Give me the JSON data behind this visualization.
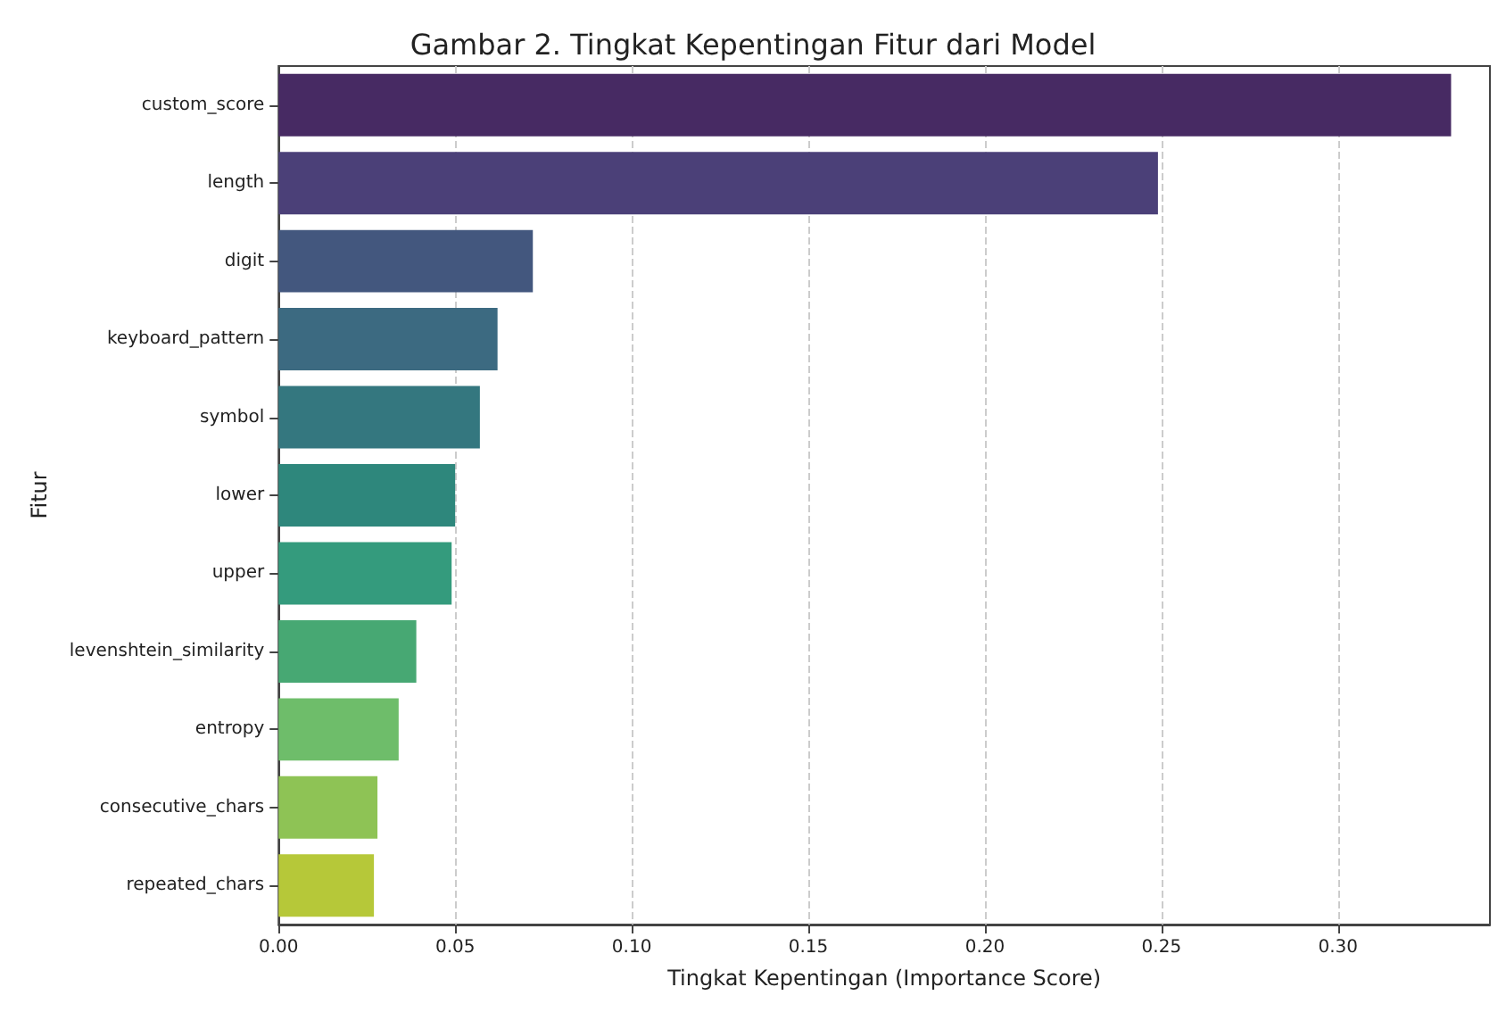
{
  "chart_data": {
    "type": "bar",
    "orientation": "horizontal",
    "title": "Gambar 2. Tingkat Kepentingan Fitur dari Model",
    "xlabel": "Tingkat Kepentingan (Importance Score)",
    "ylabel": "Fitur",
    "categories": [
      "custom_score",
      "length",
      "digit",
      "keyboard_pattern",
      "symbol",
      "lower",
      "upper",
      "levenshtein_similarity",
      "entropy",
      "consecutive_chars",
      "repeated_chars"
    ],
    "values": [
      0.332,
      0.249,
      0.072,
      0.062,
      0.057,
      0.05,
      0.049,
      0.039,
      0.034,
      0.028,
      0.027
    ],
    "colors": [
      "#472a63",
      "#4b4078",
      "#43577e",
      "#3c6a81",
      "#34777f",
      "#2e877c",
      "#349b7d",
      "#47a873",
      "#6ebd6a",
      "#8ec355",
      "#b6c839"
    ],
    "xlim": [
      0,
      0.343
    ],
    "xticks": [
      {
        "value": 0,
        "label": "0.00"
      },
      {
        "value": 0.05,
        "label": "0.05"
      },
      {
        "value": 0.1,
        "label": "0.10"
      },
      {
        "value": 0.15,
        "label": "0.15"
      },
      {
        "value": 0.2,
        "label": "0.20"
      },
      {
        "value": 0.25,
        "label": "0.25"
      },
      {
        "value": 0.3,
        "label": "0.30"
      }
    ],
    "grid": "x",
    "line_style": "dashed"
  }
}
